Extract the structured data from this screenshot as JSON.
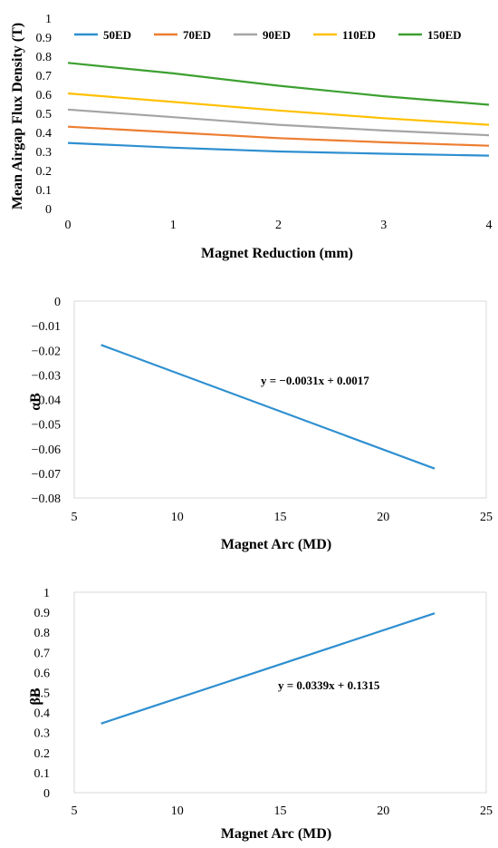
{
  "chart_data": [
    {
      "type": "line",
      "xlabel": "Magnet Reduction (mm)",
      "ylabel": "Mean Airgap Flux Density (T)",
      "xlim": [
        0,
        4
      ],
      "ylim": [
        0,
        1
      ],
      "xticks": [
        0,
        1,
        2,
        3,
        4
      ],
      "yticks": [
        0,
        0.1,
        0.2,
        0.3,
        0.4,
        0.5,
        0.6,
        0.7,
        0.8,
        0.9,
        1
      ],
      "grid": false,
      "legend_position": "top",
      "x": [
        0,
        1,
        2,
        3,
        4
      ],
      "series": [
        {
          "name": "50ED",
          "color": "#2E8FD0",
          "values": [
            0.345,
            0.32,
            0.3,
            0.288,
            0.278
          ]
        },
        {
          "name": "70ED",
          "color": "#ED7D31",
          "values": [
            0.43,
            0.4,
            0.37,
            0.348,
            0.33
          ]
        },
        {
          "name": "90ED",
          "color": "#A5A5A5",
          "values": [
            0.52,
            0.48,
            0.44,
            0.41,
            0.385
          ]
        },
        {
          "name": "110ED",
          "color": "#FFC000",
          "values": [
            0.605,
            0.56,
            0.515,
            0.475,
            0.44
          ]
        },
        {
          "name": "150ED",
          "color": "#3CA030",
          "values": [
            0.765,
            0.71,
            0.645,
            0.59,
            0.545
          ]
        }
      ]
    },
    {
      "type": "line",
      "xlabel": "Magnet Arc (MD)",
      "ylabel": "αB",
      "xlim": [
        5,
        25
      ],
      "ylim": [
        -0.08,
        0
      ],
      "xticks": [
        5,
        10,
        15,
        20,
        25
      ],
      "yticks": [
        0,
        -0.01,
        -0.02,
        -0.03,
        -0.04,
        -0.05,
        -0.06,
        -0.07,
        -0.08
      ],
      "grid": false,
      "annotation": "y = −0.0031x + 0.0017",
      "series": [
        {
          "color": "#2E8FD0",
          "x": [
            6.3,
            22.5
          ],
          "values": [
            -0.0178,
            -0.0681
          ]
        }
      ]
    },
    {
      "type": "line",
      "xlabel": "Magnet Arc (MD)",
      "ylabel": "βB",
      "xlim": [
        5,
        25
      ],
      "ylim": [
        0,
        1
      ],
      "xticks": [
        5,
        10,
        15,
        20,
        25
      ],
      "yticks": [
        0,
        0.1,
        0.2,
        0.3,
        0.4,
        0.5,
        0.6,
        0.7,
        0.8,
        0.9,
        1
      ],
      "grid": false,
      "annotation": "y = 0.0339x + 0.1315",
      "series": [
        {
          "color": "#2E8FD0",
          "x": [
            6.3,
            22.5
          ],
          "values": [
            0.345,
            0.895
          ]
        }
      ]
    }
  ]
}
